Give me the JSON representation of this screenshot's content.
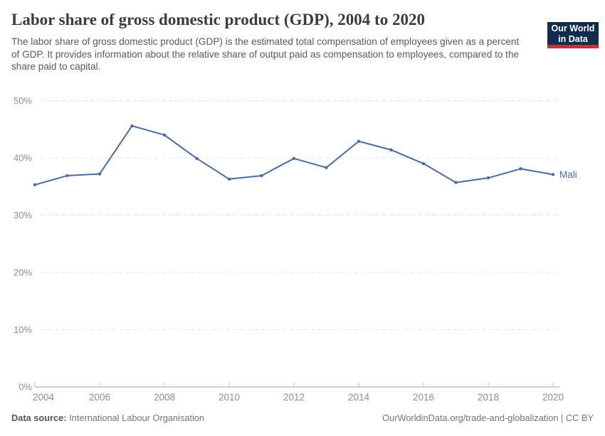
{
  "header": {
    "title": "Labor share of gross domestic product (GDP), 2004 to 2020",
    "subtitle": "The labor share of gross domestic product (GDP) is the estimated total compensation of employees given as a percent of GDP. It provides information about the relative share of output paid as compensation to employees, compared to the share paid to capital.",
    "logo_line1": "Our World",
    "logo_line2": "in Data"
  },
  "chart_data": {
    "type": "line",
    "title": "Labor share of gross domestic product (GDP), 2004 to 2020",
    "x": [
      2004,
      2005,
      2006,
      2007,
      2008,
      2009,
      2010,
      2011,
      2012,
      2013,
      2014,
      2015,
      2016,
      2017,
      2018,
      2019,
      2020
    ],
    "series": [
      {
        "name": "Mali",
        "values": [
          35.3,
          36.9,
          37.2,
          45.6,
          44.0,
          39.9,
          36.3,
          36.9,
          39.9,
          38.3,
          42.9,
          41.4,
          39.0,
          35.7,
          36.5,
          38.1,
          37.1
        ],
        "color": "#4c6ba0"
      }
    ],
    "xlabel": "",
    "ylabel": "",
    "ylim": [
      0,
      50
    ],
    "yticks": [
      0,
      10,
      20,
      30,
      40,
      50
    ],
    "ytick_suffix": "%",
    "xticks": [
      2004,
      2006,
      2008,
      2010,
      2012,
      2014,
      2016,
      2018,
      2020
    ],
    "grid": "horizontal-dashed",
    "legend_position": "end-of-line-label",
    "entity_label": "Mali"
  },
  "footer": {
    "datasource_label": "Data source:",
    "datasource_value": "International Labour Organisation",
    "url": "OurWorldinData.org/trade-and-globalization",
    "divider": " | ",
    "license": "CC BY"
  },
  "colors": {
    "line": "#4c6ba0",
    "grid": "#e4e4e4",
    "axis": "#a3a3a3",
    "tick": "#bdbdbd",
    "tick_label": "#8d8d8d",
    "title": "#3c3c3c",
    "subtitle": "#5a5a5a",
    "logo_bg": "#102d4e",
    "logo_accent": "#d12b36"
  }
}
